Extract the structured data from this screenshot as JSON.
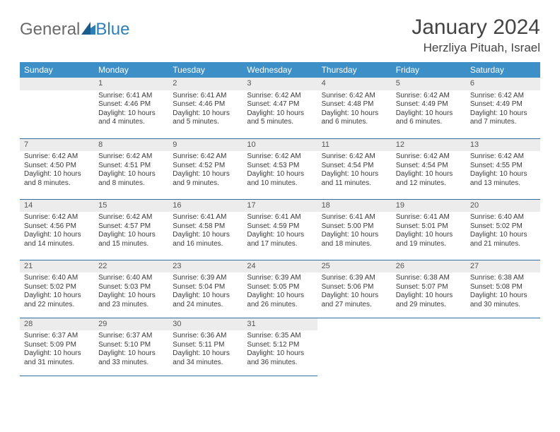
{
  "brand": {
    "part1": "General",
    "part2": "Blue"
  },
  "title": "January 2024",
  "location": "Herzliya Pituah, Israel",
  "colors": {
    "header_bg": "#3d8fc7",
    "header_text": "#ffffff",
    "daynum_bg": "#ececec",
    "row_border": "#2e6ea0",
    "text": "#3a3a3a",
    "brand_grey": "#6a6a6a",
    "brand_blue": "#2c7fb8"
  },
  "weekdays": [
    "Sunday",
    "Monday",
    "Tuesday",
    "Wednesday",
    "Thursday",
    "Friday",
    "Saturday"
  ],
  "start_offset": 1,
  "days": [
    {
      "n": 1,
      "sr": "6:41 AM",
      "ss": "4:46 PM",
      "dl": "10 hours and 4 minutes."
    },
    {
      "n": 2,
      "sr": "6:41 AM",
      "ss": "4:46 PM",
      "dl": "10 hours and 5 minutes."
    },
    {
      "n": 3,
      "sr": "6:42 AM",
      "ss": "4:47 PM",
      "dl": "10 hours and 5 minutes."
    },
    {
      "n": 4,
      "sr": "6:42 AM",
      "ss": "4:48 PM",
      "dl": "10 hours and 6 minutes."
    },
    {
      "n": 5,
      "sr": "6:42 AM",
      "ss": "4:49 PM",
      "dl": "10 hours and 6 minutes."
    },
    {
      "n": 6,
      "sr": "6:42 AM",
      "ss": "4:49 PM",
      "dl": "10 hours and 7 minutes."
    },
    {
      "n": 7,
      "sr": "6:42 AM",
      "ss": "4:50 PM",
      "dl": "10 hours and 8 minutes."
    },
    {
      "n": 8,
      "sr": "6:42 AM",
      "ss": "4:51 PM",
      "dl": "10 hours and 8 minutes."
    },
    {
      "n": 9,
      "sr": "6:42 AM",
      "ss": "4:52 PM",
      "dl": "10 hours and 9 minutes."
    },
    {
      "n": 10,
      "sr": "6:42 AM",
      "ss": "4:53 PM",
      "dl": "10 hours and 10 minutes."
    },
    {
      "n": 11,
      "sr": "6:42 AM",
      "ss": "4:54 PM",
      "dl": "10 hours and 11 minutes."
    },
    {
      "n": 12,
      "sr": "6:42 AM",
      "ss": "4:54 PM",
      "dl": "10 hours and 12 minutes."
    },
    {
      "n": 13,
      "sr": "6:42 AM",
      "ss": "4:55 PM",
      "dl": "10 hours and 13 minutes."
    },
    {
      "n": 14,
      "sr": "6:42 AM",
      "ss": "4:56 PM",
      "dl": "10 hours and 14 minutes."
    },
    {
      "n": 15,
      "sr": "6:42 AM",
      "ss": "4:57 PM",
      "dl": "10 hours and 15 minutes."
    },
    {
      "n": 16,
      "sr": "6:41 AM",
      "ss": "4:58 PM",
      "dl": "10 hours and 16 minutes."
    },
    {
      "n": 17,
      "sr": "6:41 AM",
      "ss": "4:59 PM",
      "dl": "10 hours and 17 minutes."
    },
    {
      "n": 18,
      "sr": "6:41 AM",
      "ss": "5:00 PM",
      "dl": "10 hours and 18 minutes."
    },
    {
      "n": 19,
      "sr": "6:41 AM",
      "ss": "5:01 PM",
      "dl": "10 hours and 19 minutes."
    },
    {
      "n": 20,
      "sr": "6:40 AM",
      "ss": "5:02 PM",
      "dl": "10 hours and 21 minutes."
    },
    {
      "n": 21,
      "sr": "6:40 AM",
      "ss": "5:02 PM",
      "dl": "10 hours and 22 minutes."
    },
    {
      "n": 22,
      "sr": "6:40 AM",
      "ss": "5:03 PM",
      "dl": "10 hours and 23 minutes."
    },
    {
      "n": 23,
      "sr": "6:39 AM",
      "ss": "5:04 PM",
      "dl": "10 hours and 24 minutes."
    },
    {
      "n": 24,
      "sr": "6:39 AM",
      "ss": "5:05 PM",
      "dl": "10 hours and 26 minutes."
    },
    {
      "n": 25,
      "sr": "6:39 AM",
      "ss": "5:06 PM",
      "dl": "10 hours and 27 minutes."
    },
    {
      "n": 26,
      "sr": "6:38 AM",
      "ss": "5:07 PM",
      "dl": "10 hours and 29 minutes."
    },
    {
      "n": 27,
      "sr": "6:38 AM",
      "ss": "5:08 PM",
      "dl": "10 hours and 30 minutes."
    },
    {
      "n": 28,
      "sr": "6:37 AM",
      "ss": "5:09 PM",
      "dl": "10 hours and 31 minutes."
    },
    {
      "n": 29,
      "sr": "6:37 AM",
      "ss": "5:10 PM",
      "dl": "10 hours and 33 minutes."
    },
    {
      "n": 30,
      "sr": "6:36 AM",
      "ss": "5:11 PM",
      "dl": "10 hours and 34 minutes."
    },
    {
      "n": 31,
      "sr": "6:35 AM",
      "ss": "5:12 PM",
      "dl": "10 hours and 36 minutes."
    }
  ],
  "labels": {
    "sunrise": "Sunrise:",
    "sunset": "Sunset:",
    "daylight": "Daylight:"
  }
}
